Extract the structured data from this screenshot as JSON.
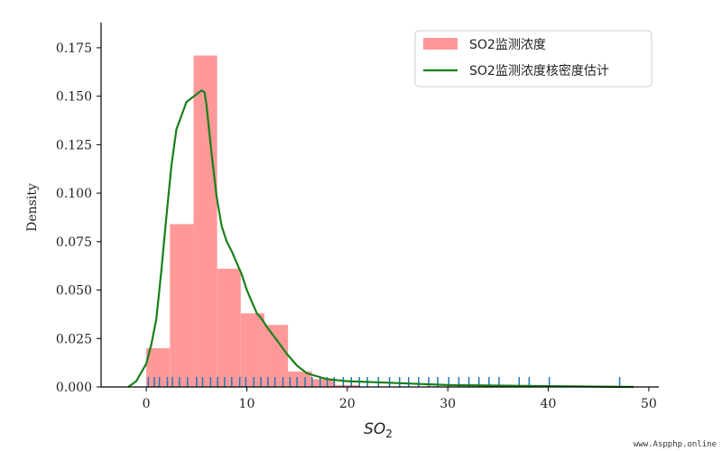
{
  "chart_data": {
    "type": "histogram",
    "title": "",
    "xlabel": "SO",
    "xlabel_subscript": "2",
    "ylabel": "Density",
    "xlim": [
      -4.5,
      51
    ],
    "ylim": [
      0,
      0.188
    ],
    "xticks": [
      0,
      10,
      20,
      30,
      40,
      50
    ],
    "yticks": [
      0.0,
      0.025,
      0.05,
      0.075,
      0.1,
      0.125,
      0.15,
      0.175
    ],
    "ytick_labels": [
      "0.000",
      "0.025",
      "0.050",
      "0.075",
      "0.100",
      "0.125",
      "0.150",
      "0.175"
    ],
    "legend": {
      "placement": "top-right",
      "hist_label": "SO2监测浓度",
      "kde_label": "SO2监测浓度核密度估计"
    },
    "histogram": {
      "color": "#ff9999",
      "bins": [
        {
          "x0": 0.0,
          "x1": 2.35,
          "density": 0.02
        },
        {
          "x0": 2.35,
          "x1": 4.7,
          "density": 0.084
        },
        {
          "x0": 4.7,
          "x1": 7.05,
          "density": 0.171
        },
        {
          "x0": 7.05,
          "x1": 9.4,
          "density": 0.061
        },
        {
          "x0": 9.4,
          "x1": 11.75,
          "density": 0.038
        },
        {
          "x0": 11.75,
          "x1": 14.1,
          "density": 0.032
        },
        {
          "x0": 14.1,
          "x1": 16.45,
          "density": 0.008
        },
        {
          "x0": 16.45,
          "x1": 18.8,
          "density": 0.004
        },
        {
          "x0": 18.8,
          "x1": 21.15,
          "density": 0.001
        }
      ]
    },
    "kde": {
      "color": "#1a7f1a",
      "x": [
        -1.8,
        -1,
        0,
        0.5,
        1,
        1.5,
        2,
        2.5,
        3,
        3.5,
        4,
        4.5,
        5,
        5.5,
        5.8,
        6,
        6.5,
        7,
        7.5,
        8,
        8.5,
        9,
        9.5,
        10,
        10.5,
        11,
        11.5,
        12,
        13,
        14,
        15,
        16,
        18,
        20,
        25,
        30,
        35,
        40,
        48.5
      ],
      "y": [
        0.0,
        0.003,
        0.012,
        0.022,
        0.035,
        0.06,
        0.088,
        0.114,
        0.133,
        0.14,
        0.147,
        0.149,
        0.151,
        0.153,
        0.152,
        0.145,
        0.12,
        0.098,
        0.083,
        0.075,
        0.07,
        0.064,
        0.058,
        0.05,
        0.044,
        0.038,
        0.035,
        0.031,
        0.024,
        0.017,
        0.011,
        0.007,
        0.004,
        0.003,
        0.002,
        0.001,
        0.0007,
        0.0004,
        0.0
      ]
    },
    "rug": {
      "color": "#1f77b4",
      "values": [
        0.2,
        0.8,
        1.3,
        2.1,
        2.6,
        3.3,
        4.1,
        5.0,
        5.6,
        6.4,
        7.1,
        7.8,
        8.5,
        9.3,
        9.9,
        10.7,
        11.4,
        12.1,
        12.8,
        13.6,
        14.3,
        15.0,
        15.8,
        16.5,
        17.3,
        18.0,
        18.7,
        19.6,
        20.4,
        21.2,
        22.0,
        23.1,
        24.2,
        25.2,
        26.1,
        27.1,
        28.1,
        29.0,
        30.1,
        31.1,
        32.1,
        33.1,
        34.1,
        35.1,
        37.1,
        38.1,
        40.1,
        47.1
      ]
    }
  },
  "watermark": "www.Aspphp.online"
}
